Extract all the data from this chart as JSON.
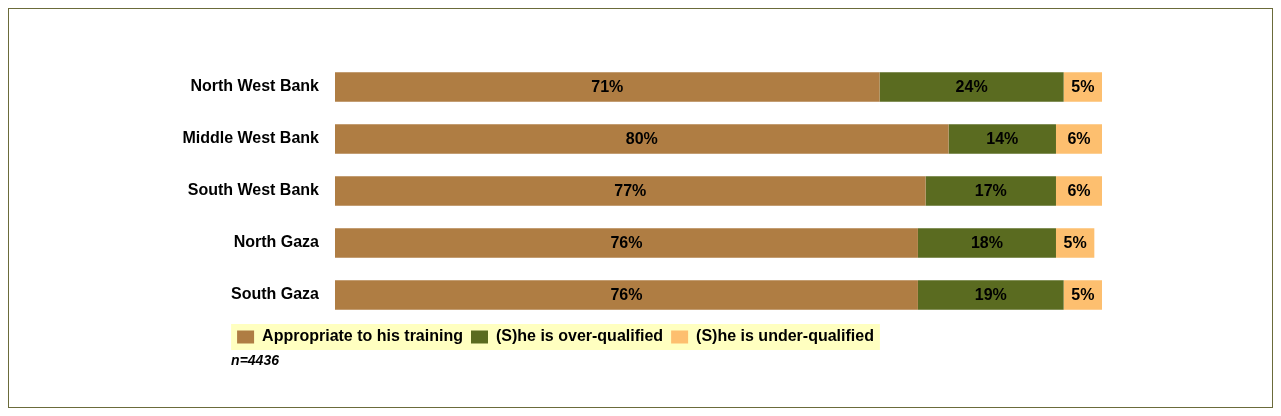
{
  "chart_data": {
    "type": "bar",
    "orientation": "horizontal",
    "stacked": true,
    "categories": [
      "North West Bank",
      "Middle West Bank",
      "South West Bank",
      "North Gaza",
      "South Gaza"
    ],
    "series": [
      {
        "name": "Appropriate to his training",
        "color": "#af7d43",
        "values": [
          71,
          80,
          77,
          76,
          76
        ],
        "value_labels": [
          "71%",
          "80%",
          "77%",
          "76%",
          "76%"
        ]
      },
      {
        "name": "(S)he is over-qualified",
        "color": "#5a6b20",
        "values": [
          24,
          14,
          17,
          18,
          19
        ],
        "value_labels": [
          "24%",
          "14%",
          "17%",
          "18%",
          "19%"
        ]
      },
      {
        "name": "(S)he is under-qualified",
        "color": "#fdbf6f",
        "values": [
          5,
          6,
          6,
          5,
          5
        ],
        "value_labels": [
          "5%",
          "6%",
          "6%",
          "5%",
          "5%"
        ]
      }
    ],
    "xlim": [
      0,
      100
    ],
    "legend": "bottom",
    "tick_labels": "y",
    "grid": false,
    "annotations": [
      "n=4436"
    ]
  }
}
